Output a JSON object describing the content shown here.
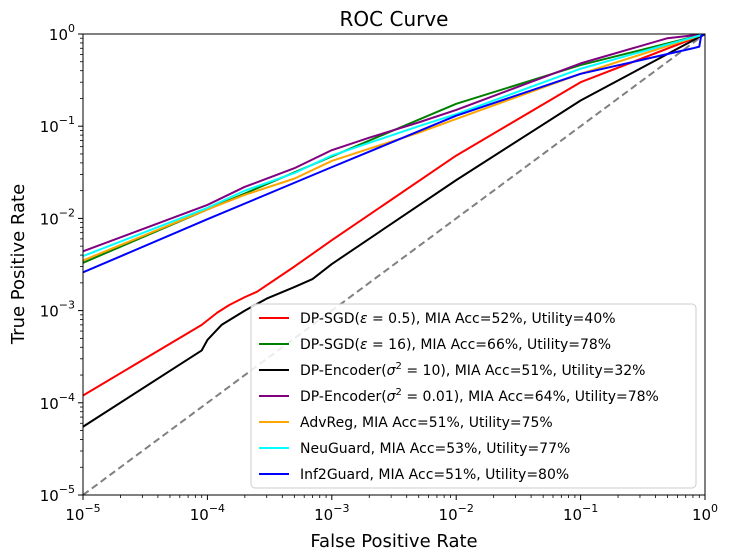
{
  "chart_data": {
    "type": "line",
    "title": "ROC Curve",
    "xlabel": "False Positive Rate",
    "ylabel": "True Positive Rate",
    "xscale": "log",
    "yscale": "log",
    "xlim": [
      1e-05,
      1
    ],
    "ylim": [
      1e-05,
      1
    ],
    "x_ticks": [
      {
        "base": "10",
        "exp": "−5",
        "value": 1e-05
      },
      {
        "base": "10",
        "exp": "−4",
        "value": 0.0001
      },
      {
        "base": "10",
        "exp": "−3",
        "value": 0.001
      },
      {
        "base": "10",
        "exp": "−2",
        "value": 0.01
      },
      {
        "base": "10",
        "exp": "−1",
        "value": 0.1
      },
      {
        "base": "10",
        "exp": "0",
        "value": 1
      }
    ],
    "y_ticks": [
      {
        "base": "10",
        "exp": "−5",
        "value": 1e-05
      },
      {
        "base": "10",
        "exp": "−4",
        "value": 0.0001
      },
      {
        "base": "10",
        "exp": "−3",
        "value": 0.001
      },
      {
        "base": "10",
        "exp": "−2",
        "value": 0.01
      },
      {
        "base": "10",
        "exp": "−1",
        "value": 0.1
      },
      {
        "base": "10",
        "exp": "0",
        "value": 1
      }
    ],
    "grid": false,
    "legend_position": "lower-right",
    "series": [
      {
        "name": "DP-SGD(ε = 0.5), MIA Acc=52%, Utility=40%",
        "legend_parts": [
          {
            "t": "DP-SGD("
          },
          {
            "t": "ε",
            "italic": true
          },
          {
            "t": " = 0.5), MIA Acc=52%, Utility=40%"
          }
        ],
        "color": "#ff0000",
        "dash": false,
        "points": [
          [
            1e-05,
            0.00012
          ],
          [
            9e-05,
            0.0007
          ],
          [
            0.00012,
            0.00095
          ],
          [
            0.00015,
            0.00115
          ],
          [
            0.0002,
            0.0014
          ],
          [
            0.00025,
            0.0016
          ],
          [
            0.0005,
            0.003
          ],
          [
            0.001,
            0.0058
          ],
          [
            0.01,
            0.048
          ],
          [
            0.1,
            0.3
          ],
          [
            1,
            1
          ]
        ]
      },
      {
        "name": "DP-SGD(ε = 16), MIA Acc=66%, Utility=78%",
        "legend_parts": [
          {
            "t": "DP-SGD("
          },
          {
            "t": "ε",
            "italic": true
          },
          {
            "t": " = 16), MIA Acc=66%, Utility=78%"
          }
        ],
        "color": "#008000",
        "dash": false,
        "points": [
          [
            1e-05,
            0.0033
          ],
          [
            0.0001,
            0.0125
          ],
          [
            0.001,
            0.047
          ],
          [
            0.01,
            0.175
          ],
          [
            0.1,
            0.46
          ],
          [
            1,
            1
          ]
        ]
      },
      {
        "name": "DP-Encoder(σ² = 10), MIA Acc=51%, Utility=32%",
        "legend_parts": [
          {
            "t": "DP-Encoder("
          },
          {
            "t": "σ",
            "italic": true
          },
          {
            "t": "2",
            "sup": true
          },
          {
            "t": " = 10), MIA Acc=51%, Utility=32%"
          }
        ],
        "color": "#000000",
        "dash": false,
        "points": [
          [
            1e-05,
            5.5e-05
          ],
          [
            9e-05,
            0.00037
          ],
          [
            0.0001,
            0.00048
          ],
          [
            0.00013,
            0.0007
          ],
          [
            0.0002,
            0.001
          ],
          [
            0.0003,
            0.00135
          ],
          [
            0.0005,
            0.0018
          ],
          [
            0.0007,
            0.0022
          ],
          [
            0.001,
            0.0032
          ],
          [
            0.01,
            0.026
          ],
          [
            0.1,
            0.19
          ],
          [
            1,
            1
          ]
        ]
      },
      {
        "name": "DP-Encoder(σ² = 0.01), MIA Acc=64%, Utility=78%",
        "legend_parts": [
          {
            "t": "DP-Encoder("
          },
          {
            "t": "σ",
            "italic": true
          },
          {
            "t": "2",
            "sup": true
          },
          {
            "t": " = 0.01), MIA Acc=64%, Utility=78%"
          }
        ],
        "color": "#800080",
        "dash": false,
        "points": [
          [
            1e-05,
            0.0044
          ],
          [
            0.0001,
            0.014
          ],
          [
            0.0002,
            0.022
          ],
          [
            0.0005,
            0.035
          ],
          [
            0.001,
            0.055
          ],
          [
            0.002,
            0.075
          ],
          [
            0.005,
            0.11
          ],
          [
            0.01,
            0.15
          ],
          [
            0.1,
            0.48
          ],
          [
            0.5,
            0.9
          ],
          [
            1,
            1
          ]
        ]
      },
      {
        "name": "AdvReg, MIA Acc=51%, Utility=75%",
        "legend_parts": [
          {
            "t": "AdvReg, MIA Acc=51%, Utility=75%"
          }
        ],
        "color": "#ffa500",
        "dash": false,
        "points": [
          [
            1e-05,
            0.0035
          ],
          [
            0.0001,
            0.0125
          ],
          [
            0.0002,
            0.018
          ],
          [
            0.0005,
            0.027
          ],
          [
            0.001,
            0.042
          ],
          [
            0.002,
            0.057
          ],
          [
            0.005,
            0.085
          ],
          [
            0.01,
            0.12
          ],
          [
            0.1,
            0.37
          ],
          [
            1,
            1
          ]
        ]
      },
      {
        "name": "NeuGuard, MIA Acc=53%, Utility=77%",
        "legend_parts": [
          {
            "t": "NeuGuard, MIA Acc=53%, Utility=77%"
          }
        ],
        "color": "#00ffff",
        "dash": false,
        "points": [
          [
            1e-05,
            0.0039
          ],
          [
            0.0001,
            0.013
          ],
          [
            0.0002,
            0.02
          ],
          [
            0.0005,
            0.031
          ],
          [
            0.001,
            0.048
          ],
          [
            0.002,
            0.066
          ],
          [
            0.005,
            0.1
          ],
          [
            0.01,
            0.135
          ],
          [
            0.1,
            0.42
          ],
          [
            1,
            1
          ]
        ]
      },
      {
        "name": "Inf2Guard, MIA Acc=51%, Utility=80%",
        "legend_parts": [
          {
            "t": "Inf2Guard, MIA Acc=51%, Utility=80%"
          }
        ],
        "color": "#0000ff",
        "dash": false,
        "points": [
          [
            1e-05,
            0.0026
          ],
          [
            0.0001,
            0.0098
          ],
          [
            0.001,
            0.036
          ],
          [
            0.01,
            0.13
          ],
          [
            0.1,
            0.37
          ],
          [
            0.8,
            0.7
          ],
          [
            0.9,
            0.73
          ],
          [
            0.93,
            0.95
          ],
          [
            1,
            1
          ]
        ]
      },
      {
        "name": "",
        "color": "#808080",
        "dash": true,
        "points": [
          [
            1e-05,
            1e-05
          ],
          [
            1,
            1
          ]
        ]
      }
    ]
  }
}
